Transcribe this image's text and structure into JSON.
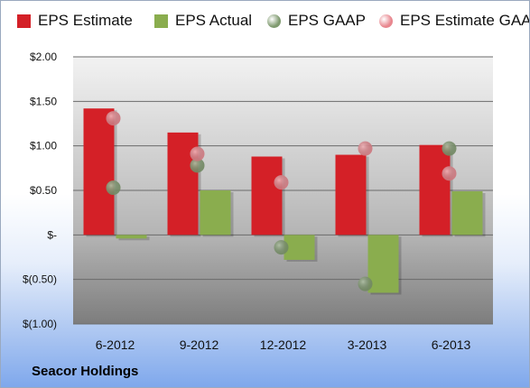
{
  "chart_data": {
    "type": "bar",
    "categories": [
      "6-2012",
      "9-2012",
      "12-2012",
      "3-2013",
      "6-2013"
    ],
    "series": [
      {
        "name": "EPS Estimate",
        "kind": "bar",
        "color": "#d42027",
        "values": [
          1.42,
          1.15,
          0.88,
          0.9,
          1.01
        ]
      },
      {
        "name": "EPS Actual",
        "kind": "bar",
        "color": "#8aad4e",
        "values": [
          -0.04,
          0.5,
          -0.28,
          -0.65,
          0.49
        ]
      },
      {
        "name": "EPS GAAP",
        "kind": "marker",
        "color": "#7f9a6f",
        "values": [
          0.53,
          0.78,
          -0.14,
          -0.55,
          0.97
        ]
      },
      {
        "name": "EPS Estimate GAAP",
        "kind": "marker",
        "color": "#e8868e",
        "values": [
          1.31,
          0.91,
          0.59,
          0.97,
          0.69
        ]
      }
    ],
    "y_ticks": [
      {
        "value": 2.0,
        "label": "$2.00"
      },
      {
        "value": 1.5,
        "label": "$1.50"
      },
      {
        "value": 1.0,
        "label": "$1.00"
      },
      {
        "value": 0.5,
        "label": "$0.50"
      },
      {
        "value": 0.0,
        "label": "$-"
      },
      {
        "value": -0.5,
        "label": "$(0.50)"
      },
      {
        "value": -1.0,
        "label": "$(1.00)"
      }
    ],
    "ylim": [
      -1.0,
      2.0
    ],
    "grid": true,
    "legend_position": "top",
    "title": "",
    "xlabel": "",
    "ylabel": ""
  },
  "company_name": "Seacor Holdings"
}
